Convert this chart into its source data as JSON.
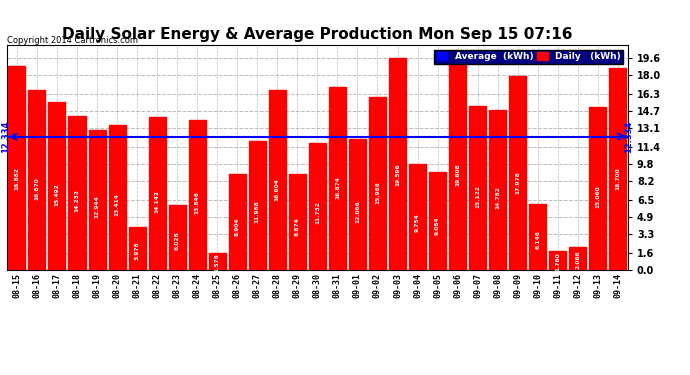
{
  "title": "Daily Solar Energy & Average Production Mon Sep 15 07:16",
  "copyright": "Copyright 2014 Cartronics.com",
  "categories": [
    "08-15",
    "08-16",
    "08-17",
    "08-18",
    "08-19",
    "08-20",
    "08-21",
    "08-22",
    "08-23",
    "08-24",
    "08-25",
    "08-26",
    "08-27",
    "08-28",
    "08-29",
    "08-30",
    "08-31",
    "09-01",
    "09-02",
    "09-03",
    "09-04",
    "09-05",
    "09-06",
    "09-07",
    "09-08",
    "09-09",
    "09-10",
    "09-11",
    "09-12",
    "09-13",
    "09-14"
  ],
  "values": [
    18.882,
    16.67,
    15.492,
    14.232,
    12.944,
    13.414,
    3.976,
    14.142,
    6.026,
    13.846,
    1.576,
    8.904,
    11.968,
    16.604,
    8.874,
    11.732,
    16.874,
    12.066,
    15.966,
    19.596,
    9.754,
    9.084,
    19.608,
    15.122,
    14.782,
    17.978,
    6.146,
    1.76,
    2.086,
    15.06,
    18.7
  ],
  "average": 12.334,
  "bar_color": "#ff0000",
  "average_color": "#0000ff",
  "bg_color": "#ffffff",
  "plot_bg_color": "#ffffff",
  "grid_color": "#bbbbbb",
  "yticks": [
    0.0,
    1.6,
    3.3,
    4.9,
    6.5,
    8.2,
    9.8,
    11.4,
    13.1,
    14.7,
    16.3,
    18.0,
    19.6
  ],
  "ylim": [
    0.0,
    20.8
  ],
  "title_fontsize": 11,
  "legend_labels": [
    "Average  (kWh)",
    "Daily   (kWh)"
  ],
  "legend_colors": [
    "#0000ff",
    "#ff0000"
  ],
  "legend_bg": "#000080",
  "avg_label": "12.334",
  "avg_label_color": "#0000ff"
}
